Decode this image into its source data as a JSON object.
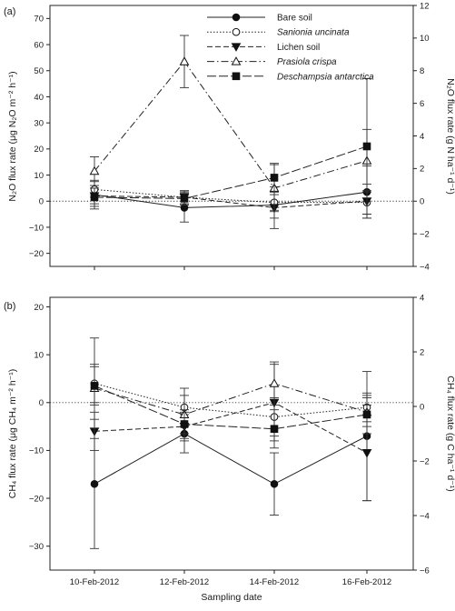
{
  "chart_data": [
    {
      "type": "line",
      "panel_label": "(a)",
      "categories": [
        "10-Feb-2012",
        "12-Feb-2012",
        "14-Feb-2012",
        "16-Feb-2012"
      ],
      "ylabel_left": "N₂O flux rate (μg N₂O m⁻² h⁻¹)",
      "ylabel_right": "N₂O flux rate (g N ha⁻¹ d⁻¹)",
      "ylim": [
        -25,
        75
      ],
      "yticks": [
        -20,
        -10,
        0,
        10,
        20,
        30,
        40,
        50,
        60,
        70
      ],
      "ylim_right": [
        -4,
        12
      ],
      "yticks_right": [
        -4,
        -2,
        0,
        2,
        4,
        6,
        8,
        10,
        12
      ],
      "series": [
        {
          "name": "Bare soil",
          "marker": "circle-filled",
          "dash": "solid",
          "values": [
            2.5,
            -2.5,
            -1.5,
            3.5
          ],
          "err": [
            5.5,
            5.5,
            5.0,
            10.0
          ]
        },
        {
          "name": "Sanionia uncinata",
          "italic": true,
          "marker": "circle-open",
          "dash": "dotted",
          "values": [
            4.5,
            1.5,
            -0.5,
            -0.5
          ],
          "err": [
            3.0,
            2.5,
            3.0,
            4.5
          ]
        },
        {
          "name": "Lichen soil",
          "marker": "triangle-down-filled",
          "dash": "dashed",
          "values": [
            2.0,
            1.5,
            -2.5,
            0.0
          ],
          "err": [
            3.0,
            2.5,
            8.0,
            6.5
          ]
        },
        {
          "name": "Prasiola crispa",
          "italic": true,
          "marker": "triangle-up-open",
          "dash": "dashdot",
          "values": [
            11.5,
            53.5,
            5.0,
            15.5
          ],
          "err": [
            5.5,
            10.0,
            9.0,
            12.0
          ]
        },
        {
          "name": "Deschampsia antarctica",
          "italic": true,
          "marker": "square-filled",
          "dash": "longdash",
          "values": [
            1.5,
            1.0,
            9.0,
            21.0
          ],
          "err": [
            3.5,
            2.5,
            5.5,
            26.0
          ]
        }
      ],
      "reference_line": 0,
      "legend_position": "top-right"
    },
    {
      "type": "line",
      "panel_label": "(b)",
      "categories": [
        "10-Feb-2012",
        "12-Feb-2012",
        "14-Feb-2012",
        "16-Feb-2012"
      ],
      "ylabel_left": "CH₄ flux rate (μg CH₄ m⁻² h⁻¹)",
      "ylabel_right": "CH₄ flux rate (g C ha⁻¹ d⁻¹)",
      "xlabel": "Sampling date",
      "ylim": [
        -35,
        22
      ],
      "yticks": [
        -30,
        -20,
        -10,
        0,
        10,
        20
      ],
      "ylim_right": [
        -6,
        4
      ],
      "yticks_right": [
        -6,
        -4,
        -2,
        0,
        2,
        4
      ],
      "series": [
        {
          "name": "Bare soil",
          "marker": "circle-filled",
          "dash": "solid",
          "values": [
            -17.0,
            -6.5,
            -17.0,
            -7.0
          ],
          "err": [
            13.5,
            4.0,
            6.5,
            13.5
          ]
        },
        {
          "name": "Sanionia uncinata",
          "italic": true,
          "marker": "circle-open",
          "dash": "dotted",
          "values": [
            4.0,
            -1.0,
            -3.0,
            -1.0
          ],
          "err": [
            4.0,
            4.0,
            4.0,
            3.0
          ]
        },
        {
          "name": "Lichen soil",
          "marker": "triangle-down-filled",
          "dash": "dashed",
          "values": [
            -6.0,
            -5.0,
            0.0,
            -10.5
          ],
          "err": [
            4.0,
            3.0,
            8.0,
            10.0
          ]
        },
        {
          "name": "Prasiola crispa",
          "italic": true,
          "marker": "triangle-up-open",
          "dash": "dashdot",
          "values": [
            3.0,
            -2.5,
            4.0,
            -2.0
          ],
          "err": [
            10.5,
            4.0,
            4.5,
            3.0
          ]
        },
        {
          "name": "Deschampsia antarctica",
          "italic": true,
          "marker": "square-filled",
          "dash": "longdash",
          "values": [
            3.5,
            -4.5,
            -5.5,
            -2.5
          ],
          "err": [
            4.0,
            3.0,
            4.0,
            4.0
          ]
        }
      ],
      "reference_line": 0
    }
  ]
}
